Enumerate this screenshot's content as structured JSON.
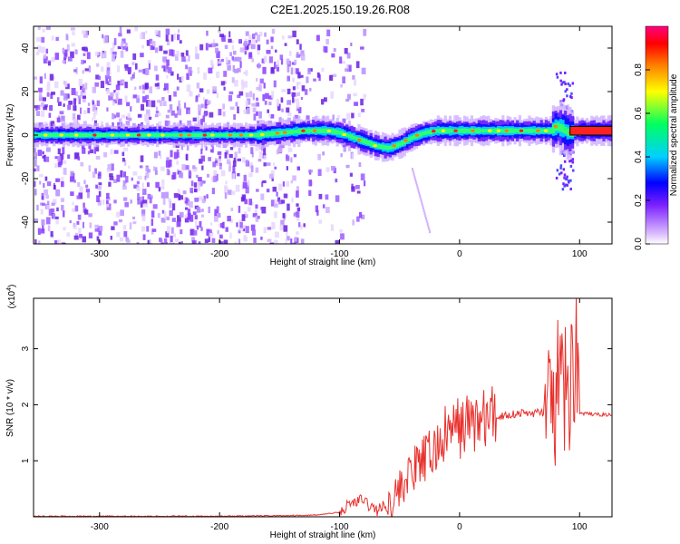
{
  "title": "C2E1.2025.150.19.26.R08",
  "chart_data": [
    {
      "type": "heatmap",
      "xlabel": "Height of straight line (km)",
      "ylabel": "Frequency (Hz)",
      "xlim": [
        -355,
        127
      ],
      "ylim": [
        -50,
        50
      ],
      "xticks": [
        -300,
        -200,
        -100,
        0,
        100
      ],
      "yticks": [
        -40,
        -20,
        0,
        20,
        40
      ],
      "colorbar": {
        "label": "Normalized spectral amplitude",
        "range": [
          0,
          1
        ],
        "ticks": [
          0.0,
          0.2,
          0.4,
          0.6,
          0.8
        ],
        "colormap": "rainbow (violet to red)",
        "colors": [
          "#ffffff",
          "#d9b8ff",
          "#7a1fff",
          "#0000ff",
          "#00d0ff",
          "#00ff60",
          "#ffff00",
          "#ff8000",
          "#ff0000",
          "#ff0080"
        ]
      },
      "ridge": {
        "x": [
          -355,
          -300,
          -250,
          -200,
          -170,
          -150,
          -130,
          -110,
          -100,
          -90,
          -80,
          -70,
          -60,
          -50,
          -40,
          -30,
          -20,
          -10,
          0,
          20,
          40,
          60,
          75,
          80,
          85,
          90,
          100,
          127
        ],
        "y": [
          0,
          0,
          0,
          0,
          0,
          1,
          2,
          2,
          1,
          -1,
          -3,
          -5,
          -6,
          -4,
          -1,
          1,
          2,
          2,
          2,
          2,
          2,
          2,
          2,
          4,
          3,
          1,
          2,
          2
        ]
      }
    },
    {
      "type": "line",
      "xlabel": "Height of straight line (km)",
      "ylabel": "SNR (10 * v/v)",
      "multiplier": "(x10",
      "multiplier_exp": "4",
      "multiplier_close": ")",
      "xlim": [
        -355,
        127
      ],
      "ylim": [
        0,
        3.9
      ],
      "xticks": [
        -300,
        -200,
        -100,
        0,
        100
      ],
      "yticks": [
        1,
        2,
        3
      ],
      "line_color": "#e8302c",
      "series": [
        {
          "x": [
            -355,
            -300,
            -250,
            -200,
            -150,
            -120,
            -100,
            -90,
            -80,
            -75,
            -70,
            -60,
            -50,
            -40,
            -30,
            -20,
            -10,
            0,
            10,
            20,
            30,
            40,
            50,
            60,
            70,
            73,
            78,
            85,
            90,
            95,
            97,
            100,
            110,
            127
          ],
          "y": [
            0.01,
            0.01,
            0.01,
            0.01,
            0.02,
            0.03,
            0.08,
            0.25,
            0.3,
            0.2,
            0.12,
            0.2,
            0.5,
            0.8,
            1.0,
            1.2,
            1.5,
            1.6,
            1.7,
            1.72,
            1.78,
            1.82,
            1.85,
            1.85,
            1.87,
            1.6,
            2.0,
            2.4,
            2.1,
            2.6,
            3.5,
            1.85,
            1.83,
            1.82
          ]
        }
      ]
    }
  ]
}
